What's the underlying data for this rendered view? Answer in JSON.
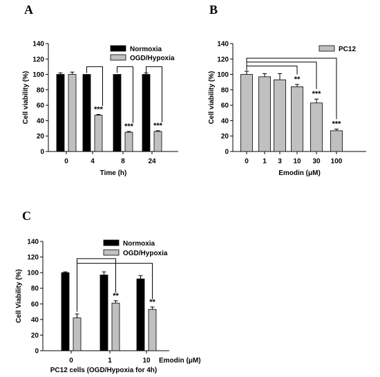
{
  "colors": {
    "normoxia": "#000000",
    "ogd": "#c0c0c0",
    "pc12": "#c0c0c0",
    "axis": "#000000"
  },
  "chart_data": [
    {
      "panel": "A",
      "type": "bar",
      "categories": [
        "0",
        "4",
        "8",
        "24"
      ],
      "xlabel": "Time (h)",
      "ylabel": "Cell viability (%)",
      "ylim": [
        0,
        140
      ],
      "yticks": [
        0,
        20,
        40,
        60,
        80,
        100,
        120,
        140
      ],
      "legend_position": "top-right",
      "series": [
        {
          "name": "Normoxia",
          "color_key": "normoxia",
          "values": [
            100,
            100,
            100,
            100
          ],
          "errors": [
            2,
            0,
            0,
            2
          ]
        },
        {
          "name": "OGD/Hypoxia",
          "color_key": "ogd",
          "values": [
            100,
            47,
            25,
            26
          ],
          "errors": [
            3,
            1,
            1,
            1
          ]
        }
      ],
      "significance": [
        {
          "category": 1,
          "label": "***"
        },
        {
          "category": 2,
          "label": "***"
        },
        {
          "category": 3,
          "label": "***"
        }
      ]
    },
    {
      "panel": "B",
      "type": "bar",
      "categories": [
        "0",
        "1",
        "3",
        "10",
        "30",
        "100"
      ],
      "xlabel": "Emodin (μM)",
      "ylabel": "Cell viability (%)",
      "ylim": [
        0,
        140
      ],
      "yticks": [
        0,
        20,
        40,
        60,
        80,
        100,
        120,
        140
      ],
      "legend_position": "top-right",
      "series": [
        {
          "name": "PC12",
          "color_key": "pc12",
          "values": [
            100,
            97,
            93,
            84,
            63,
            27
          ],
          "errors": [
            4,
            4,
            8,
            3,
            5,
            2
          ]
        }
      ],
      "significance": [
        {
          "category": 3,
          "label": "**"
        },
        {
          "category": 4,
          "label": "***"
        },
        {
          "category": 5,
          "label": "***"
        }
      ]
    },
    {
      "panel": "C",
      "type": "bar",
      "categories": [
        "0",
        "1",
        "10"
      ],
      "xlabel": "Emodin (μM)",
      "xlabel2": "PC12 cells (OGD/Hypoxia for 4h)",
      "ylabel": "Cell Viability (%)",
      "ylim": [
        0,
        140
      ],
      "yticks": [
        0,
        20,
        40,
        60,
        80,
        100,
        120,
        140
      ],
      "legend_position": "top-right",
      "series": [
        {
          "name": "Normoxia",
          "color_key": "normoxia",
          "values": [
            100,
            97,
            92
          ],
          "errors": [
            1,
            4,
            4
          ]
        },
        {
          "name": "OGD/Hypoxia",
          "color_key": "ogd",
          "values": [
            42,
            61,
            53
          ],
          "errors": [
            5,
            3,
            3
          ]
        }
      ],
      "significance": [
        {
          "category": 1,
          "label": "**"
        },
        {
          "category": 2,
          "label": "**"
        }
      ]
    }
  ]
}
